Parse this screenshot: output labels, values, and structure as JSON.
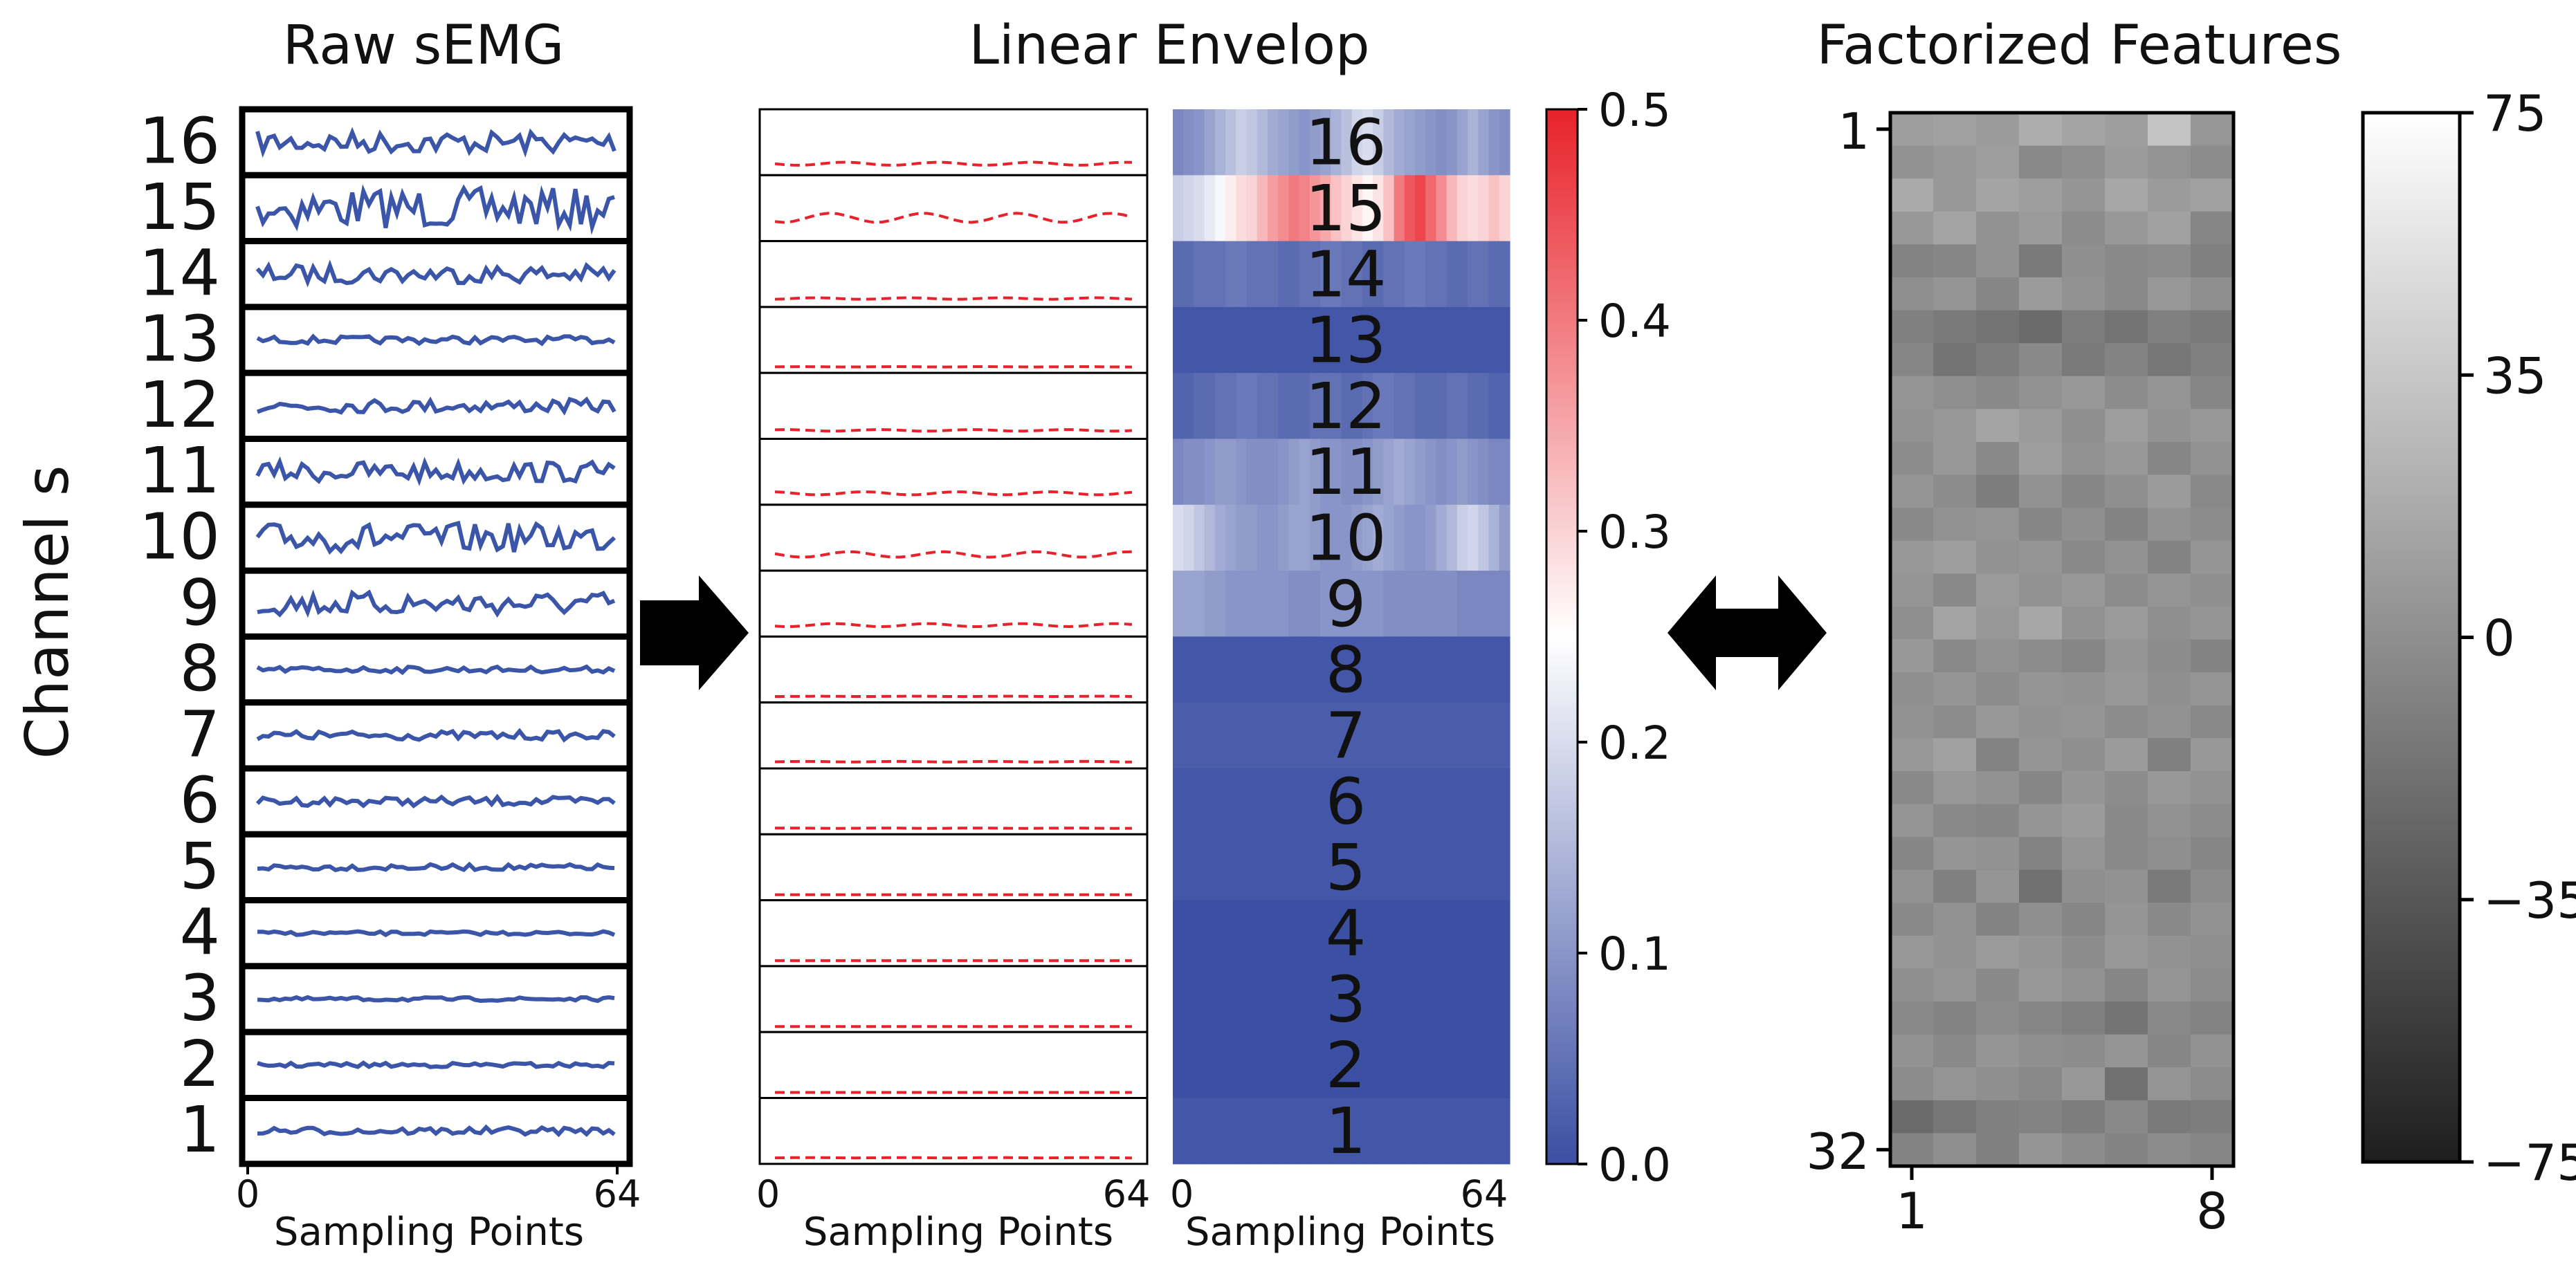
{
  "figure": {
    "titles": {
      "raw": "Raw sEMG",
      "envelope": "Linear Envelop",
      "factorized": "Factorized Features"
    },
    "y_axis_label": "Channel s",
    "x_axis_label": "Sampling Points",
    "x_ticks": [
      "0",
      "64"
    ],
    "arrow_right_icon": "arrow-right-icon",
    "arrow_both_icon": "arrow-left-right-icon"
  },
  "chart_data": [
    {
      "type": "line",
      "name": "raw-semg",
      "title": "Raw sEMG",
      "xlabel": "Sampling Points",
      "ylabel": "Channel s",
      "xlim": [
        0,
        64
      ],
      "x_ticks": [
        0,
        64
      ],
      "channels": [
        16,
        15,
        14,
        13,
        12,
        11,
        10,
        9,
        8,
        7,
        6,
        5,
        4,
        3,
        2,
        1
      ],
      "amplitude": [
        0.3,
        0.55,
        0.25,
        0.1,
        0.18,
        0.28,
        0.4,
        0.32,
        0.08,
        0.12,
        0.12,
        0.08,
        0.05,
        0.05,
        0.06,
        0.1
      ],
      "line_color": "#3b55a8"
    },
    {
      "type": "line",
      "name": "linear-envelope",
      "title": "Linear Envelop",
      "xlabel": "Sampling Points",
      "xlim": [
        0,
        64
      ],
      "x_ticks": [
        0,
        64
      ],
      "channels": [
        16,
        15,
        14,
        13,
        12,
        11,
        10,
        9,
        8,
        7,
        6,
        5,
        4,
        3,
        2,
        1
      ],
      "level": [
        0.1,
        0.3,
        0.05,
        0.01,
        0.05,
        0.1,
        0.18,
        0.1,
        0.01,
        0.02,
        0.01,
        0.0,
        0.0,
        0.0,
        0.0,
        0.01
      ],
      "line_color": "#e8222a",
      "line_style": "dashed"
    },
    {
      "type": "heatmap",
      "name": "envelope-heatmap",
      "xlabel": "Sampling Points",
      "xlim": [
        0,
        64
      ],
      "x_ticks": [
        0,
        64
      ],
      "row_labels": [
        "16",
        "15",
        "14",
        "13",
        "12",
        "11",
        "10",
        "9",
        "8",
        "7",
        "6",
        "5",
        "4",
        "3",
        "2",
        "1"
      ],
      "values": [
        [
          0.08,
          0.09,
          0.1,
          0.12,
          0.14,
          0.16,
          0.18,
          0.17,
          0.15,
          0.13,
          0.12,
          0.11,
          0.1,
          0.11,
          0.12,
          0.14,
          0.16,
          0.19,
          0.2,
          0.18,
          0.15,
          0.13,
          0.12,
          0.11,
          0.1,
          0.09,
          0.1,
          0.12,
          0.14,
          0.12,
          0.1,
          0.09
        ],
        [
          0.18,
          0.19,
          0.2,
          0.22,
          0.24,
          0.27,
          0.29,
          0.3,
          0.33,
          0.36,
          0.38,
          0.4,
          0.39,
          0.37,
          0.35,
          0.32,
          0.3,
          0.28,
          0.26,
          0.28,
          0.32,
          0.4,
          0.44,
          0.46,
          0.42,
          0.38,
          0.33,
          0.3,
          0.29,
          0.3,
          0.32,
          0.3
        ],
        [
          0.04,
          0.04,
          0.05,
          0.05,
          0.05,
          0.06,
          0.06,
          0.05,
          0.05,
          0.05,
          0.04,
          0.04,
          0.05,
          0.05,
          0.06,
          0.06,
          0.05,
          0.05,
          0.04,
          0.04,
          0.05,
          0.05,
          0.06,
          0.06,
          0.05,
          0.05,
          0.04,
          0.04,
          0.05,
          0.05,
          0.04,
          0.04
        ],
        [
          0.01,
          0.01,
          0.01,
          0.01,
          0.01,
          0.01,
          0.01,
          0.01,
          0.01,
          0.01,
          0.01,
          0.01,
          0.01,
          0.01,
          0.01,
          0.01,
          0.01,
          0.01,
          0.01,
          0.01,
          0.01,
          0.01,
          0.01,
          0.01,
          0.01,
          0.01,
          0.01,
          0.01,
          0.01,
          0.01,
          0.01,
          0.01
        ],
        [
          0.03,
          0.03,
          0.04,
          0.04,
          0.05,
          0.05,
          0.06,
          0.06,
          0.05,
          0.05,
          0.04,
          0.04,
          0.04,
          0.05,
          0.05,
          0.05,
          0.04,
          0.04,
          0.05,
          0.06,
          0.06,
          0.05,
          0.05,
          0.04,
          0.04,
          0.04,
          0.05,
          0.05,
          0.04,
          0.04,
          0.03,
          0.03
        ],
        [
          0.08,
          0.09,
          0.09,
          0.1,
          0.11,
          0.11,
          0.1,
          0.09,
          0.09,
          0.09,
          0.1,
          0.11,
          0.12,
          0.11,
          0.1,
          0.1,
          0.09,
          0.09,
          0.1,
          0.11,
          0.12,
          0.13,
          0.12,
          0.11,
          0.1,
          0.09,
          0.1,
          0.11,
          0.1,
          0.09,
          0.08,
          0.08
        ],
        [
          0.2,
          0.19,
          0.17,
          0.15,
          0.13,
          0.12,
          0.11,
          0.11,
          0.1,
          0.1,
          0.11,
          0.12,
          0.12,
          0.11,
          0.1,
          0.1,
          0.1,
          0.11,
          0.12,
          0.13,
          0.12,
          0.11,
          0.1,
          0.1,
          0.11,
          0.13,
          0.15,
          0.18,
          0.19,
          0.17,
          0.14,
          0.11
        ],
        [
          0.12,
          0.12,
          0.12,
          0.11,
          0.11,
          0.1,
          0.1,
          0.1,
          0.1,
          0.1,
          0.1,
          0.09,
          0.09,
          0.09,
          0.1,
          0.1,
          0.1,
          0.1,
          0.1,
          0.1,
          0.09,
          0.09,
          0.09,
          0.09,
          0.09,
          0.09,
          0.09,
          0.08,
          0.08,
          0.08,
          0.08,
          0.08
        ],
        [
          0.01,
          0.01,
          0.01,
          0.01,
          0.01,
          0.01,
          0.01,
          0.01,
          0.01,
          0.01,
          0.01,
          0.01,
          0.01,
          0.01,
          0.01,
          0.01,
          0.01,
          0.01,
          0.01,
          0.01,
          0.01,
          0.01,
          0.01,
          0.01,
          0.01,
          0.01,
          0.01,
          0.01,
          0.01,
          0.01,
          0.01,
          0.01
        ],
        [
          0.02,
          0.02,
          0.02,
          0.02,
          0.02,
          0.02,
          0.02,
          0.02,
          0.02,
          0.02,
          0.02,
          0.02,
          0.02,
          0.02,
          0.02,
          0.02,
          0.02,
          0.02,
          0.02,
          0.02,
          0.02,
          0.02,
          0.02,
          0.02,
          0.02,
          0.02,
          0.02,
          0.02,
          0.02,
          0.02,
          0.02,
          0.02
        ],
        [
          0.01,
          0.01,
          0.01,
          0.01,
          0.01,
          0.01,
          0.01,
          0.01,
          0.01,
          0.01,
          0.01,
          0.01,
          0.01,
          0.01,
          0.01,
          0.01,
          0.01,
          0.01,
          0.01,
          0.01,
          0.01,
          0.01,
          0.01,
          0.01,
          0.01,
          0.01,
          0.01,
          0.01,
          0.01,
          0.01,
          0.01,
          0.01
        ],
        [
          0.01,
          0.01,
          0.01,
          0.01,
          0.01,
          0.01,
          0.01,
          0.01,
          0.01,
          0.01,
          0.01,
          0.01,
          0.01,
          0.01,
          0.01,
          0.01,
          0.01,
          0.01,
          0.01,
          0.01,
          0.01,
          0.01,
          0.01,
          0.01,
          0.01,
          0.01,
          0.01,
          0.01,
          0.01,
          0.01,
          0.01,
          0.01
        ],
        [
          0.0,
          0.0,
          0.0,
          0.0,
          0.0,
          0.0,
          0.0,
          0.0,
          0.0,
          0.0,
          0.0,
          0.0,
          0.0,
          0.0,
          0.0,
          0.0,
          0.0,
          0.0,
          0.0,
          0.0,
          0.0,
          0.0,
          0.0,
          0.0,
          0.0,
          0.0,
          0.0,
          0.0,
          0.0,
          0.0,
          0.0,
          0.0
        ],
        [
          0.0,
          0.0,
          0.0,
          0.0,
          0.0,
          0.0,
          0.0,
          0.0,
          0.0,
          0.0,
          0.0,
          0.0,
          0.0,
          0.0,
          0.0,
          0.0,
          0.0,
          0.0,
          0.0,
          0.0,
          0.0,
          0.0,
          0.0,
          0.0,
          0.0,
          0.0,
          0.0,
          0.0,
          0.0,
          0.0,
          0.0,
          0.0
        ],
        [
          0.0,
          0.0,
          0.0,
          0.0,
          0.0,
          0.0,
          0.0,
          0.0,
          0.0,
          0.0,
          0.0,
          0.0,
          0.0,
          0.0,
          0.0,
          0.0,
          0.0,
          0.0,
          0.0,
          0.0,
          0.0,
          0.0,
          0.0,
          0.0,
          0.0,
          0.0,
          0.0,
          0.0,
          0.0,
          0.0,
          0.0,
          0.0
        ],
        [
          0.01,
          0.01,
          0.01,
          0.01,
          0.01,
          0.01,
          0.01,
          0.01,
          0.01,
          0.01,
          0.01,
          0.01,
          0.01,
          0.01,
          0.01,
          0.01,
          0.01,
          0.01,
          0.01,
          0.01,
          0.01,
          0.01,
          0.01,
          0.01,
          0.01,
          0.01,
          0.01,
          0.01,
          0.01,
          0.01,
          0.01,
          0.01
        ]
      ],
      "colorbar": {
        "range": [
          0.0,
          0.5
        ],
        "ticks": [
          "0.0",
          "0.1",
          "0.2",
          "0.3",
          "0.4",
          "0.5"
        ],
        "colors": [
          "#3b4fa3",
          "#ffffff",
          "#e8222a"
        ]
      }
    },
    {
      "type": "heatmap",
      "name": "factorized-features",
      "title": "Factorized Features",
      "rows": 32,
      "cols": 8,
      "x_ticks": [
        "1",
        "8"
      ],
      "y_ticks": [
        "1",
        "32"
      ],
      "values": [
        [
          10,
          12,
          8,
          20,
          14,
          10,
          35,
          5
        ],
        [
          2,
          6,
          10,
          -4,
          0,
          8,
          3,
          -2
        ],
        [
          18,
          6,
          14,
          10,
          4,
          16,
          8,
          12
        ],
        [
          6,
          14,
          2,
          8,
          -2,
          6,
          12,
          -6
        ],
        [
          -8,
          -6,
          2,
          -14,
          0,
          -4,
          -2,
          -10
        ],
        [
          0,
          4,
          -6,
          8,
          2,
          -4,
          6,
          0
        ],
        [
          -10,
          -14,
          -18,
          -24,
          -12,
          -18,
          -10,
          -14
        ],
        [
          -6,
          -18,
          -12,
          -4,
          -14,
          -8,
          -16,
          -10
        ],
        [
          4,
          0,
          -4,
          2,
          6,
          -2,
          4,
          -6
        ],
        [
          2,
          6,
          14,
          8,
          0,
          10,
          2,
          6
        ],
        [
          -2,
          6,
          -4,
          10,
          2,
          6,
          -6,
          2
        ],
        [
          4,
          -2,
          -12,
          2,
          -6,
          0,
          8,
          -4
        ],
        [
          -4,
          2,
          4,
          -6,
          0,
          -8,
          2,
          -2
        ],
        [
          6,
          10,
          2,
          4,
          -4,
          2,
          -8,
          4
        ],
        [
          4,
          -4,
          8,
          2,
          6,
          -2,
          4,
          0
        ],
        [
          0,
          14,
          6,
          16,
          2,
          8,
          0,
          4
        ],
        [
          6,
          -4,
          2,
          -2,
          -6,
          4,
          -2,
          -8
        ],
        [
          0,
          4,
          -2,
          4,
          2,
          6,
          0,
          4
        ],
        [
          2,
          -2,
          6,
          2,
          4,
          -2,
          2,
          -4
        ],
        [
          6,
          12,
          -8,
          4,
          0,
          8,
          -10,
          6
        ],
        [
          -4,
          6,
          2,
          -6,
          4,
          -2,
          6,
          2
        ],
        [
          4,
          -4,
          -6,
          4,
          8,
          -4,
          2,
          -2
        ],
        [
          -6,
          4,
          2,
          -8,
          4,
          -4,
          0,
          -6
        ],
        [
          2,
          -10,
          4,
          -20,
          0,
          2,
          -14,
          -2
        ],
        [
          -4,
          2,
          -8,
          0,
          -6,
          4,
          -4,
          2
        ],
        [
          6,
          2,
          8,
          4,
          -2,
          6,
          2,
          0
        ],
        [
          0,
          4,
          -4,
          6,
          2,
          -6,
          4,
          -2
        ],
        [
          -4,
          -8,
          -2,
          -6,
          -10,
          -18,
          -4,
          -8
        ],
        [
          2,
          -4,
          4,
          0,
          -2,
          4,
          -6,
          2
        ],
        [
          -2,
          4,
          0,
          -4,
          6,
          -20,
          4,
          -2
        ],
        [
          -24,
          -16,
          -10,
          -8,
          -12,
          -4,
          -14,
          -12
        ],
        [
          -8,
          0,
          -10,
          4,
          -2,
          -8,
          -2,
          -6
        ]
      ],
      "colorbar": {
        "range": [
          -75,
          75
        ],
        "ticks": [
          "75",
          "35",
          "0",
          "−35",
          "−75"
        ]
      }
    }
  ]
}
